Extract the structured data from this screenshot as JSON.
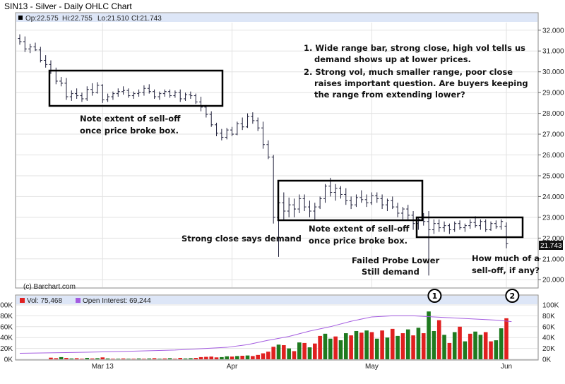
{
  "title": "SIN13 - Silver - Daily OHLC Chart",
  "colors": {
    "bar": "#1f1f3a",
    "grid": "#e2e2e2",
    "border": "#888888",
    "legend_bg": "#dde6f7",
    "vol_up": "#1f7a1f",
    "vol_down": "#e02020",
    "open_interest": "#a45ce0",
    "last_box": "#111111"
  },
  "chart_data": [
    {
      "type": "ohlc",
      "ohlc_header": {
        "open": "Op:22.575",
        "high": "Hi:22.755",
        "low": "Lo:21.510",
        "close": "Cl:21.743"
      },
      "last_price": "21.743",
      "ylim": [
        19.6,
        32.4
      ],
      "y_ticks": [
        "20.000",
        "21.000",
        "22.000",
        "23.000",
        "24.000",
        "25.000",
        "26.000",
        "27.000",
        "28.000",
        "29.000",
        "30.000",
        "31.000",
        "32.000"
      ],
      "x_labels": [
        {
          "label": "Mar 13",
          "index": 16
        },
        {
          "label": "Apr",
          "index": 41
        },
        {
          "label": "May",
          "index": 68
        },
        {
          "label": "Jun",
          "index": 94
        }
      ],
      "bars": [
        [
          31.6,
          31.8,
          31.3,
          31.45
        ],
        [
          31.45,
          31.7,
          30.95,
          31.1
        ],
        [
          31.1,
          31.35,
          30.9,
          31.2
        ],
        [
          31.2,
          31.4,
          31.0,
          31.05
        ],
        [
          31.05,
          31.2,
          30.45,
          30.55
        ],
        [
          30.55,
          30.8,
          30.2,
          30.35
        ],
        [
          30.35,
          30.55,
          29.9,
          30.05
        ],
        [
          30.05,
          30.2,
          29.4,
          29.55
        ],
        [
          29.55,
          29.75,
          29.3,
          29.45
        ],
        [
          29.45,
          29.7,
          28.65,
          28.8
        ],
        [
          28.8,
          29.1,
          28.6,
          28.95
        ],
        [
          28.95,
          29.2,
          28.7,
          28.85
        ],
        [
          28.85,
          29.0,
          28.55,
          28.7
        ],
        [
          28.7,
          29.3,
          28.6,
          29.15
        ],
        [
          29.15,
          29.45,
          28.85,
          29.0
        ],
        [
          29.0,
          29.5,
          28.95,
          29.35
        ],
        [
          29.35,
          29.4,
          28.5,
          28.65
        ],
        [
          28.65,
          28.95,
          28.55,
          28.8
        ],
        [
          28.8,
          29.05,
          28.65,
          28.95
        ],
        [
          28.95,
          29.2,
          28.8,
          29.05
        ],
        [
          29.05,
          29.3,
          28.9,
          29.1
        ],
        [
          29.1,
          29.2,
          28.75,
          28.85
        ],
        [
          28.85,
          29.05,
          28.7,
          28.95
        ],
        [
          28.95,
          29.15,
          28.8,
          29.0
        ],
        [
          29.0,
          29.35,
          28.85,
          29.2
        ],
        [
          29.2,
          29.4,
          28.95,
          29.05
        ],
        [
          29.05,
          29.15,
          28.7,
          28.8
        ],
        [
          28.8,
          29.05,
          28.65,
          28.95
        ],
        [
          28.95,
          29.15,
          28.8,
          29.05
        ],
        [
          29.05,
          29.15,
          28.75,
          28.85
        ],
        [
          28.85,
          29.1,
          28.75,
          29.0
        ],
        [
          29.0,
          29.15,
          28.55,
          28.7
        ],
        [
          28.7,
          29.0,
          28.6,
          28.9
        ],
        [
          28.9,
          29.05,
          28.7,
          28.85
        ],
        [
          28.85,
          28.95,
          28.45,
          28.55
        ],
        [
          28.55,
          28.8,
          28.1,
          28.3
        ],
        [
          28.3,
          28.4,
          27.8,
          27.95
        ],
        [
          27.95,
          28.1,
          27.35,
          27.45
        ],
        [
          27.45,
          27.55,
          26.9,
          27.05
        ],
        [
          27.05,
          27.25,
          26.7,
          26.85
        ],
        [
          26.85,
          27.3,
          26.75,
          27.2
        ],
        [
          27.2,
          27.35,
          26.9,
          27.0
        ],
        [
          27.0,
          27.6,
          26.95,
          27.5
        ],
        [
          27.5,
          27.8,
          27.2,
          27.35
        ],
        [
          27.35,
          28.0,
          27.3,
          27.85
        ],
        [
          27.85,
          28.05,
          27.5,
          27.65
        ],
        [
          27.65,
          27.8,
          27.15,
          27.3
        ],
        [
          27.3,
          27.6,
          26.3,
          26.5
        ],
        [
          26.5,
          26.7,
          25.8,
          25.9
        ],
        [
          25.9,
          26.0,
          22.7,
          23.0
        ],
        [
          23.0,
          24.0,
          21.1,
          23.7
        ],
        [
          23.7,
          24.2,
          22.9,
          23.3
        ],
        [
          23.3,
          23.95,
          23.0,
          23.6
        ],
        [
          23.6,
          23.9,
          23.0,
          23.4
        ],
        [
          23.4,
          24.1,
          23.2,
          23.9
        ],
        [
          23.9,
          24.1,
          23.3,
          23.5
        ],
        [
          23.5,
          23.8,
          23.0,
          23.3
        ],
        [
          23.3,
          23.7,
          22.9,
          23.5
        ],
        [
          23.5,
          24.0,
          23.4,
          23.9
        ],
        [
          23.9,
          24.6,
          23.7,
          24.5
        ],
        [
          24.5,
          24.9,
          24.0,
          24.2
        ],
        [
          24.2,
          24.6,
          23.8,
          24.4
        ],
        [
          24.4,
          24.5,
          23.9,
          24.1
        ],
        [
          24.1,
          24.4,
          23.6,
          23.8
        ],
        [
          23.8,
          24.0,
          23.4,
          23.6
        ],
        [
          23.6,
          24.1,
          23.5,
          23.95
        ],
        [
          23.95,
          24.3,
          23.7,
          23.85
        ],
        [
          23.85,
          24.1,
          23.5,
          23.7
        ],
        [
          23.7,
          24.2,
          23.6,
          24.05
        ],
        [
          24.05,
          24.2,
          23.7,
          23.9
        ],
        [
          23.9,
          24.1,
          23.4,
          23.6
        ],
        [
          23.6,
          23.9,
          23.3,
          23.8
        ],
        [
          23.8,
          24.0,
          23.4,
          23.5
        ],
        [
          23.5,
          23.7,
          23.0,
          23.2
        ],
        [
          23.2,
          23.5,
          22.9,
          23.4
        ],
        [
          23.4,
          23.6,
          22.9,
          23.1
        ],
        [
          23.1,
          23.3,
          22.4,
          22.7
        ],
        [
          22.7,
          23.0,
          22.4,
          22.9
        ],
        [
          22.9,
          23.2,
          22.6,
          22.8
        ],
        [
          22.8,
          23.3,
          20.2,
          22.4
        ],
        [
          22.4,
          22.9,
          22.2,
          22.7
        ],
        [
          22.7,
          22.9,
          22.3,
          22.5
        ],
        [
          22.5,
          22.8,
          22.3,
          22.6
        ],
        [
          22.6,
          22.7,
          22.2,
          22.4
        ],
        [
          22.4,
          22.8,
          22.3,
          22.7
        ],
        [
          22.7,
          22.85,
          22.4,
          22.5
        ],
        [
          22.5,
          22.7,
          22.3,
          22.6
        ],
        [
          22.6,
          22.9,
          22.45,
          22.75
        ],
        [
          22.75,
          23.05,
          22.5,
          22.6
        ],
        [
          22.6,
          22.9,
          22.4,
          22.8
        ],
        [
          22.8,
          22.9,
          22.3,
          22.4
        ],
        [
          22.4,
          22.8,
          22.35,
          22.7
        ],
        [
          22.7,
          22.85,
          22.45,
          22.55
        ],
        [
          22.55,
          22.9,
          22.4,
          22.8
        ],
        [
          22.575,
          22.755,
          21.51,
          21.743
        ]
      ],
      "annotations": [
        "1. Wide range bar, strong close, high vol tells us",
        "demand shows up at lower prices.",
        "2. Strong vol, much smaller range, poor close",
        "raises important question.  Are buyers keeping",
        "the range from extending lower?"
      ],
      "notes": {
        "box1": [
          "Note extent of sell-off",
          "once price broke box."
        ],
        "box2": [
          "Note extent of sell-off",
          "once price broke box."
        ],
        "strong_close": "Strong close says demand",
        "failed_probe": [
          "Failed Probe Lower",
          "Still demand"
        ],
        "how_much": [
          "How much of a",
          "sell-off, if any?"
        ],
        "credit": "(c) Barchart.com"
      }
    },
    {
      "type": "bar",
      "legend": [
        {
          "label": "Vol: 75,468",
          "color": "#e02020"
        },
        {
          "label": "Open Interest: 69,244",
          "color": "#a45ce0"
        }
      ],
      "ylim": [
        0,
        100000
      ],
      "y_ticks": [
        "0K",
        "20K",
        "40K",
        "60K",
        "80K",
        "100K"
      ],
      "y_ticks_right": [
        "0K",
        "20K",
        "40K",
        "60K",
        "80K",
        "100K"
      ],
      "volume": [
        [
          0,
          0
        ],
        [
          0,
          0
        ],
        [
          0,
          0
        ],
        [
          0,
          0
        ],
        [
          0,
          0
        ],
        [
          0,
          0
        ],
        [
          3000,
          0
        ],
        [
          2000,
          0
        ],
        [
          4000,
          1
        ],
        [
          2500,
          0
        ],
        [
          1500,
          1
        ],
        [
          2000,
          0
        ],
        [
          1000,
          0
        ],
        [
          2500,
          1
        ],
        [
          1500,
          0
        ],
        [
          2000,
          1
        ],
        [
          3500,
          0
        ],
        [
          1500,
          1
        ],
        [
          1000,
          0
        ],
        [
          1000,
          1
        ],
        [
          1500,
          0
        ],
        [
          1000,
          1
        ],
        [
          1000,
          0
        ],
        [
          1500,
          1
        ],
        [
          1000,
          0
        ],
        [
          1500,
          1
        ],
        [
          2000,
          0
        ],
        [
          1000,
          1
        ],
        [
          1500,
          0
        ],
        [
          2000,
          1
        ],
        [
          1000,
          0
        ],
        [
          2500,
          0
        ],
        [
          1500,
          1
        ],
        [
          2000,
          1
        ],
        [
          2500,
          0
        ],
        [
          4000,
          0
        ],
        [
          4500,
          0
        ],
        [
          5000,
          0
        ],
        [
          3500,
          0
        ],
        [
          4000,
          1
        ],
        [
          5500,
          1
        ],
        [
          5000,
          0
        ],
        [
          6000,
          1
        ],
        [
          6500,
          0
        ],
        [
          7000,
          1
        ],
        [
          6000,
          0
        ],
        [
          8000,
          0
        ],
        [
          11000,
          0
        ],
        [
          14000,
          0
        ],
        [
          23000,
          0
        ],
        [
          27000,
          1
        ],
        [
          26000,
          0
        ],
        [
          20000,
          1
        ],
        [
          15000,
          0
        ],
        [
          31000,
          1
        ],
        [
          30000,
          0
        ],
        [
          22000,
          1
        ],
        [
          29000,
          0
        ],
        [
          43000,
          0
        ],
        [
          47000,
          1
        ],
        [
          38000,
          1
        ],
        [
          42000,
          0
        ],
        [
          35000,
          1
        ],
        [
          48000,
          1
        ],
        [
          44000,
          0
        ],
        [
          52000,
          1
        ],
        [
          49000,
          0
        ],
        [
          53000,
          1
        ],
        [
          50000,
          0
        ],
        [
          38000,
          1
        ],
        [
          53000,
          0
        ],
        [
          40000,
          1
        ],
        [
          56000,
          0
        ],
        [
          43000,
          1
        ],
        [
          48000,
          0
        ],
        [
          55000,
          1
        ],
        [
          44000,
          0
        ],
        [
          58000,
          1
        ],
        [
          48000,
          0
        ],
        [
          88000,
          1
        ],
        [
          52000,
          1
        ],
        [
          72000,
          0
        ],
        [
          45000,
          1
        ],
        [
          30000,
          0
        ],
        [
          50000,
          1
        ],
        [
          60000,
          0
        ],
        [
          33000,
          1
        ],
        [
          47000,
          0
        ],
        [
          51000,
          1
        ],
        [
          45000,
          1
        ],
        [
          50000,
          0
        ],
        [
          33000,
          0
        ],
        [
          35000,
          1
        ],
        [
          57000,
          1
        ],
        [
          75468,
          0
        ]
      ],
      "open_interest": [
        [
          0,
          11000
        ],
        [
          10,
          12500
        ],
        [
          20,
          14500
        ],
        [
          30,
          17000
        ],
        [
          36,
          20000
        ],
        [
          40,
          22000
        ],
        [
          44,
          27000
        ],
        [
          48,
          35000
        ],
        [
          52,
          42000
        ],
        [
          56,
          52000
        ],
        [
          60,
          60000
        ],
        [
          64,
          70000
        ],
        [
          68,
          78000
        ],
        [
          72,
          80000
        ],
        [
          76,
          80000
        ],
        [
          80,
          78000
        ],
        [
          84,
          76000
        ],
        [
          88,
          74000
        ],
        [
          92,
          72000
        ],
        [
          95,
          69244
        ]
      ],
      "markers": [
        "1",
        "2"
      ],
      "marker_index": [
        80,
        95
      ]
    }
  ]
}
